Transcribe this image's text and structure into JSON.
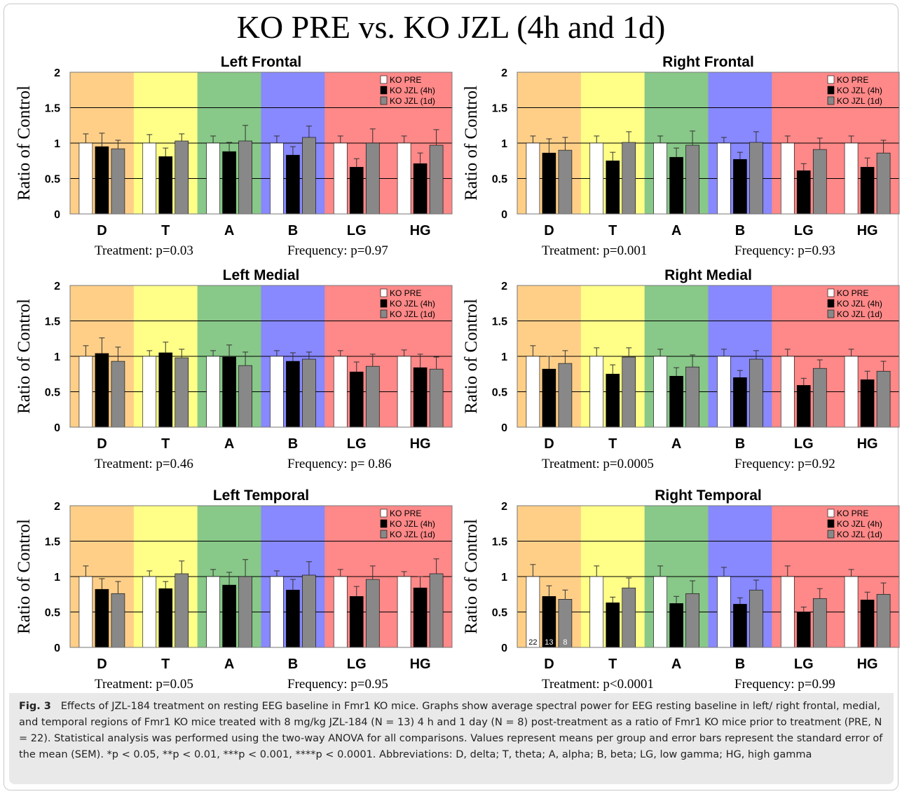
{
  "figure": {
    "title": "KO PRE vs. KO JZL (4h and 1d)",
    "caption": {
      "label": "Fig. 3",
      "text": "Effects of JZL-184 treatment on resting EEG baseline in Fmr1 KO mice. Graphs show average spectral power for EEG resting baseline in left/ right frontal, medial, and temporal regions of Fmr1 KO mice treated with 8 mg/kg JZL-184 (N = 13) 4 h and 1 day (N = 8) post-treatment as a ratio of Fmr1 KO mice prior to treatment (PRE, N = 22). Statistical analysis was performed using the two-way ANOVA for all comparisons. Values represent means per group and error bars represent the standard error of the mean (SEM). *p < 0.05, **p < 0.01, ***p < 0.001, ****p < 0.0001. Abbreviations: D, delta; T, theta; A, alpha; B, beta; LG, low gamma; HG, high gamma"
    }
  },
  "colors": {
    "bands": [
      "#ffcf88",
      "#ffff88",
      "#88c888",
      "#8888ff",
      "#ff8888",
      "#ff8888"
    ],
    "series": [
      "#ffffff",
      "#000000",
      "#888888"
    ]
  },
  "chart_data": [
    {
      "type": "bar",
      "title": "Left Frontal",
      "ylabel": "Ratio of Control",
      "ylim": [
        0,
        2
      ],
      "yticks": [
        "0",
        "0.5",
        "1",
        "1.5",
        "2"
      ],
      "categories": [
        "D",
        "T",
        "A",
        "B",
        "LG",
        "HG"
      ],
      "legend_position": "top-right",
      "series": [
        {
          "name": "KO PRE",
          "values": [
            1.0,
            1.0,
            1.0,
            1.0,
            1.0,
            1.0
          ],
          "errors": [
            0.13,
            0.12,
            0.1,
            0.1,
            0.1,
            0.1
          ]
        },
        {
          "name": "KO JZL (4h)",
          "values": [
            0.95,
            0.81,
            0.88,
            0.83,
            0.66,
            0.71
          ],
          "errors": [
            0.19,
            0.12,
            0.13,
            0.12,
            0.12,
            0.15
          ]
        },
        {
          "name": "KO JZL (1d)",
          "values": [
            0.92,
            1.03,
            1.03,
            1.08,
            1.0,
            0.97
          ],
          "errors": [
            0.12,
            0.1,
            0.22,
            0.16,
            0.2,
            0.22
          ]
        }
      ],
      "annotations": [
        "Treatment: p=0.03",
        "Frequency: p=0.97"
      ]
    },
    {
      "type": "bar",
      "title": "Right Frontal",
      "ylabel": "Ratio of Control",
      "ylim": [
        0,
        2
      ],
      "yticks": [
        "0",
        "0.5",
        "1",
        "1.5",
        "2"
      ],
      "categories": [
        "D",
        "T",
        "A",
        "B",
        "LG",
        "HG"
      ],
      "legend_position": "top-right",
      "series": [
        {
          "name": "KO PRE",
          "values": [
            1.0,
            1.0,
            1.0,
            1.0,
            1.0,
            1.0
          ],
          "errors": [
            0.1,
            0.1,
            0.1,
            0.08,
            0.1,
            0.1
          ]
        },
        {
          "name": "KO JZL (4h)",
          "values": [
            0.86,
            0.75,
            0.8,
            0.77,
            0.61,
            0.66
          ],
          "errors": [
            0.2,
            0.12,
            0.13,
            0.1,
            0.1,
            0.13
          ]
        },
        {
          "name": "KO JZL (1d)",
          "values": [
            0.9,
            1.01,
            0.97,
            1.01,
            0.91,
            0.86
          ],
          "errors": [
            0.18,
            0.15,
            0.2,
            0.15,
            0.16,
            0.18
          ]
        }
      ],
      "annotations": [
        "Treatment: p=0.001",
        "Frequency: p=0.93"
      ]
    },
    {
      "type": "bar",
      "title": "Left Medial",
      "ylabel": "Ratio of Control",
      "ylim": [
        0,
        2
      ],
      "yticks": [
        "0",
        "0.5",
        "1",
        "1.5",
        "2"
      ],
      "categories": [
        "D",
        "T",
        "A",
        "B",
        "LG",
        "HG"
      ],
      "legend_position": "top-right",
      "series": [
        {
          "name": "KO PRE",
          "values": [
            1.0,
            1.0,
            1.0,
            1.0,
            1.0,
            1.0
          ],
          "errors": [
            0.15,
            0.08,
            0.08,
            0.08,
            0.08,
            0.09
          ]
        },
        {
          "name": "KO JZL (4h)",
          "values": [
            1.04,
            1.05,
            0.99,
            0.93,
            0.78,
            0.84
          ],
          "errors": [
            0.22,
            0.15,
            0.17,
            0.12,
            0.14,
            0.19
          ]
        },
        {
          "name": "KO JZL (1d)",
          "values": [
            0.93,
            0.98,
            0.87,
            0.96,
            0.86,
            0.82
          ],
          "errors": [
            0.2,
            0.12,
            0.19,
            0.1,
            0.17,
            0.17
          ]
        }
      ],
      "annotations": [
        "Treatment: p=0.46",
        "Frequency: p= 0.86"
      ]
    },
    {
      "type": "bar",
      "title": "Right Medial",
      "ylabel": "Ratio of Control",
      "ylim": [
        0,
        2
      ],
      "yticks": [
        "0",
        "0.5",
        "1",
        "1.5",
        "2"
      ],
      "categories": [
        "D",
        "T",
        "A",
        "B",
        "LG",
        "HG"
      ],
      "legend_position": "top-right",
      "series": [
        {
          "name": "KO PRE",
          "values": [
            1.0,
            1.0,
            1.0,
            1.0,
            1.0,
            1.0
          ],
          "errors": [
            0.15,
            0.12,
            0.1,
            0.1,
            0.1,
            0.1
          ]
        },
        {
          "name": "KO JZL (4h)",
          "values": [
            0.82,
            0.75,
            0.72,
            0.7,
            0.59,
            0.67
          ],
          "errors": [
            0.18,
            0.13,
            0.12,
            0.1,
            0.1,
            0.12
          ]
        },
        {
          "name": "KO JZL (1d)",
          "values": [
            0.9,
            0.99,
            0.85,
            0.96,
            0.83,
            0.79
          ],
          "errors": [
            0.18,
            0.13,
            0.17,
            0.12,
            0.12,
            0.14
          ]
        }
      ],
      "annotations": [
        "Treatment: p=0.0005",
        "Frequency: p=0.92"
      ]
    },
    {
      "type": "bar",
      "title": "Left Temporal",
      "ylabel": "Ratio of Control",
      "ylim": [
        0,
        2
      ],
      "yticks": [
        "0",
        "0.5",
        "1",
        "1.5",
        "2"
      ],
      "categories": [
        "D",
        "T",
        "A",
        "B",
        "LG",
        "HG"
      ],
      "legend_position": "top-right",
      "series": [
        {
          "name": "KO PRE",
          "values": [
            1.0,
            1.0,
            1.0,
            1.0,
            1.0,
            1.0
          ],
          "errors": [
            0.15,
            0.08,
            0.1,
            0.08,
            0.1,
            0.07
          ]
        },
        {
          "name": "KO JZL (4h)",
          "values": [
            0.82,
            0.83,
            0.88,
            0.81,
            0.72,
            0.84
          ],
          "errors": [
            0.15,
            0.1,
            0.18,
            0.15,
            0.14,
            0.16
          ]
        },
        {
          "name": "KO JZL (1d)",
          "values": [
            0.76,
            1.04,
            1.0,
            1.02,
            0.96,
            1.04
          ],
          "errors": [
            0.17,
            0.18,
            0.24,
            0.19,
            0.19,
            0.21
          ]
        }
      ],
      "annotations": [
        "Treatment: p=0.05",
        "Frequency: p=0.95"
      ]
    },
    {
      "type": "bar",
      "title": "Right Temporal",
      "ylabel": "Ratio of Control",
      "ylim": [
        0,
        2
      ],
      "yticks": [
        "0",
        "0.5",
        "1",
        "1.5",
        "2"
      ],
      "categories": [
        "D",
        "T",
        "A",
        "B",
        "LG",
        "HG"
      ],
      "legend_position": "top-right",
      "series": [
        {
          "name": "KO PRE",
          "values": [
            1.0,
            1.0,
            1.0,
            1.0,
            1.0,
            1.0
          ],
          "errors": [
            0.17,
            0.15,
            0.15,
            0.13,
            0.15,
            0.1
          ]
        },
        {
          "name": "KO JZL (4h)",
          "values": [
            0.72,
            0.63,
            0.62,
            0.61,
            0.5,
            0.67
          ],
          "errors": [
            0.15,
            0.08,
            0.1,
            0.09,
            0.07,
            0.11
          ]
        },
        {
          "name": "KO JZL (1d)",
          "values": [
            0.68,
            0.84,
            0.76,
            0.81,
            0.69,
            0.75
          ],
          "errors": [
            0.13,
            0.14,
            0.18,
            0.14,
            0.14,
            0.16
          ]
        }
      ],
      "sample_sizes": [
        "22",
        "13",
        "8"
      ],
      "annotations": [
        "Treatment: p<0.0001",
        "Frequency: p=0.99"
      ]
    }
  ]
}
